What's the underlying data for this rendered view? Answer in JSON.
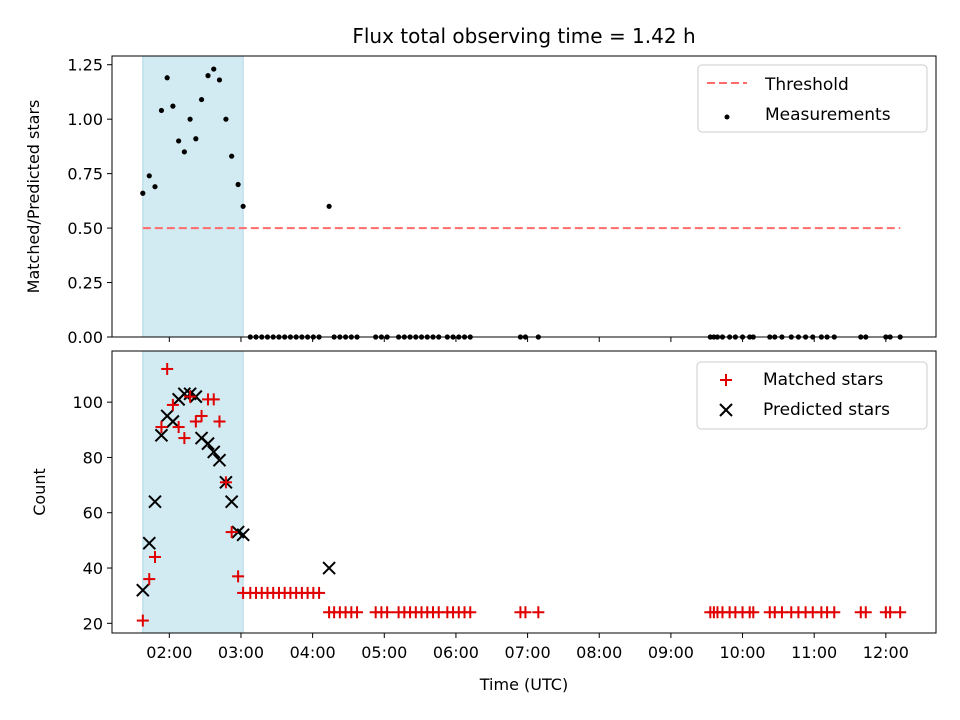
{
  "colors": {
    "shade": "#add8e6",
    "threshold": "#ff6b6b",
    "measurement": "#000000",
    "matched": "#e00000",
    "predicted": "#000000"
  },
  "chart_data": [
    {
      "type": "scatter",
      "title": "Flux total observing time = 1.42 h",
      "xlabel": "",
      "ylabel": "Matched/Predicted stars",
      "xlim": [
        1.2,
        12.7
      ],
      "ylim": [
        0,
        1.29
      ],
      "yticks": [
        0.0,
        0.25,
        0.5,
        0.75,
        1.0,
        1.25
      ],
      "ytick_labels": [
        "0.00",
        "0.25",
        "0.50",
        "0.75",
        "1.00",
        "1.25"
      ],
      "shaded_span": [
        1.63,
        3.03
      ],
      "threshold": {
        "name": "Threshold",
        "value": 0.5,
        "x_range": [
          1.63,
          12.2
        ]
      },
      "legend": [
        "Threshold",
        "Measurements"
      ],
      "legend_position": "upper right",
      "series": [
        {
          "name": "Measurements",
          "x": [
            1.63,
            1.72,
            1.8,
            1.89,
            1.97,
            2.05,
            2.13,
            2.21,
            2.29,
            2.37,
            2.45,
            2.54,
            2.62,
            2.7,
            2.79,
            2.87,
            2.96,
            3.03,
            4.23,
            3.13,
            3.21,
            3.29,
            3.37,
            3.45,
            3.53,
            3.61,
            3.69,
            3.77,
            3.85,
            3.93,
            4.01,
            4.09,
            4.3,
            4.38,
            4.46,
            4.54,
            4.62,
            4.88,
            4.96,
            5.04,
            5.2,
            5.28,
            5.36,
            5.44,
            5.52,
            5.6,
            5.68,
            5.76,
            5.88,
            5.96,
            6.04,
            6.12,
            6.2,
            6.9,
            6.97,
            7.15,
            9.55,
            9.6,
            9.65,
            9.72,
            9.82,
            9.9,
            10.0,
            10.1,
            10.15,
            10.38,
            10.45,
            10.55,
            10.68,
            10.78,
            10.88,
            10.98,
            11.1,
            11.18,
            11.28,
            11.65,
            11.72,
            12.0,
            12.06,
            12.2
          ],
          "y": [
            0.66,
            0.74,
            0.69,
            1.04,
            1.19,
            1.06,
            0.9,
            0.85,
            1.0,
            0.91,
            1.09,
            1.2,
            1.23,
            1.18,
            1.0,
            0.83,
            0.7,
            0.6,
            0.6,
            0,
            0,
            0,
            0,
            0,
            0,
            0,
            0,
            0,
            0,
            0,
            0,
            0,
            0,
            0,
            0,
            0,
            0,
            0,
            0,
            0,
            0,
            0,
            0,
            0,
            0,
            0,
            0,
            0,
            0,
            0,
            0,
            0,
            0,
            0,
            0,
            0,
            0,
            0,
            0,
            0,
            0,
            0,
            0,
            0,
            0,
            0,
            0,
            0,
            0,
            0,
            0,
            0,
            0,
            0,
            0,
            0,
            0,
            0,
            0,
            0
          ]
        }
      ]
    },
    {
      "type": "scatter",
      "title": "",
      "xlabel": "Time (UTC)",
      "ylabel": "Count",
      "xlim": [
        1.2,
        12.7
      ],
      "ylim": [
        16.5,
        118.5
      ],
      "yticks": [
        20,
        40,
        60,
        80,
        100
      ],
      "ytick_labels": [
        "20",
        "40",
        "60",
        "80",
        "100"
      ],
      "xticks": [
        2,
        3,
        4,
        5,
        6,
        7,
        8,
        9,
        10,
        11,
        12
      ],
      "xtick_labels": [
        "02:00",
        "03:00",
        "04:00",
        "05:00",
        "06:00",
        "07:00",
        "08:00",
        "09:00",
        "10:00",
        "11:00",
        "12:00"
      ],
      "shaded_span": [
        1.63,
        3.03
      ],
      "legend": [
        "Matched stars",
        "Predicted stars"
      ],
      "legend_position": "upper right",
      "series": [
        {
          "name": "Matched stars",
          "marker": "plus",
          "x": [
            1.63,
            1.72,
            1.8,
            1.89,
            1.97,
            2.05,
            2.13,
            2.21,
            2.29,
            2.37,
            2.45,
            2.54,
            2.62,
            2.7,
            2.79,
            2.87,
            2.96,
            3.03,
            3.13,
            3.21,
            3.29,
            3.37,
            3.45,
            3.53,
            3.61,
            3.69,
            3.77,
            3.85,
            3.93,
            4.01,
            4.09,
            4.23,
            4.3,
            4.38,
            4.46,
            4.54,
            4.62,
            4.88,
            4.96,
            5.04,
            5.2,
            5.28,
            5.36,
            5.44,
            5.52,
            5.6,
            5.68,
            5.76,
            5.88,
            5.96,
            6.04,
            6.12,
            6.2,
            6.9,
            6.97,
            7.15,
            9.55,
            9.6,
            9.65,
            9.72,
            9.82,
            9.9,
            10.0,
            10.1,
            10.15,
            10.38,
            10.45,
            10.55,
            10.68,
            10.78,
            10.88,
            10.98,
            11.1,
            11.18,
            11.28,
            11.65,
            11.72,
            12.0,
            12.06,
            12.2
          ],
          "y": [
            21,
            36,
            44,
            91,
            112,
            99,
            91,
            87,
            102,
            93,
            95,
            101,
            101,
            93,
            71,
            53,
            37,
            31,
            31,
            31,
            31,
            31,
            31,
            31,
            31,
            31,
            31,
            31,
            31,
            31,
            31,
            24,
            24,
            24,
            24,
            24,
            24,
            24,
            24,
            24,
            24,
            24,
            24,
            24,
            24,
            24,
            24,
            24,
            24,
            24,
            24,
            24,
            24,
            24,
            24,
            24,
            24,
            24,
            24,
            24,
            24,
            24,
            24,
            24,
            24,
            24,
            24,
            24,
            24,
            24,
            24,
            24,
            24,
            24,
            24,
            24,
            24,
            24,
            24,
            24
          ]
        },
        {
          "name": "Predicted stars",
          "marker": "x",
          "x": [
            1.63,
            1.72,
            1.8,
            1.89,
            1.97,
            2.05,
            2.13,
            2.21,
            2.29,
            2.37,
            2.45,
            2.54,
            2.62,
            2.7,
            2.79,
            2.87,
            2.96,
            3.03,
            4.23
          ],
          "y": [
            32,
            49,
            64,
            88,
            95,
            93,
            101,
            103,
            103,
            102,
            87,
            85,
            82,
            79,
            71,
            64,
            53,
            52,
            40
          ]
        }
      ]
    }
  ]
}
